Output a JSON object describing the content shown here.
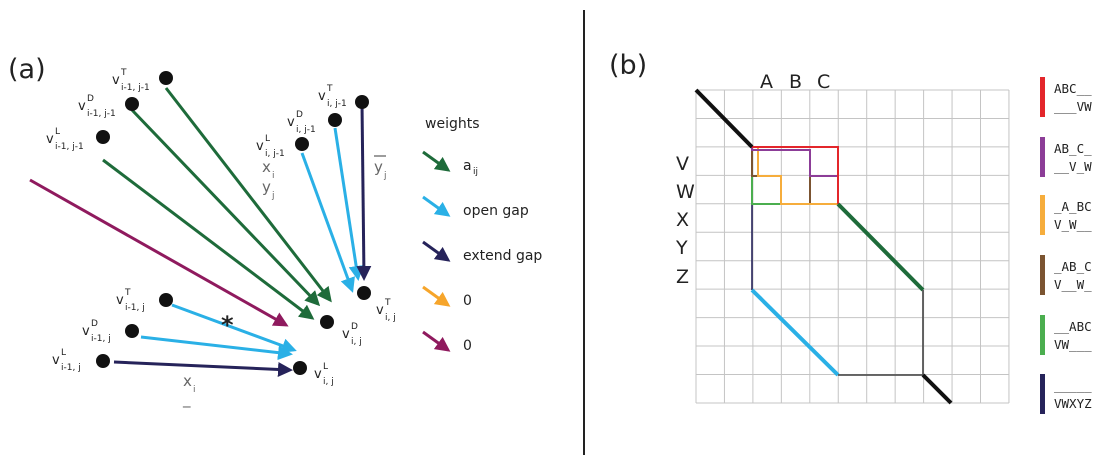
{
  "panel_a": {
    "label": "(a)",
    "nodes": {
      "t_prev": {
        "main": "v",
        "sup": "T",
        "sub": "i-1, j-1"
      },
      "d_prev": {
        "main": "v",
        "sup": "D",
        "sub": "i-1, j-1"
      },
      "l_prev": {
        "main": "v",
        "sup": "L",
        "sub": "i-1, j-1"
      },
      "t_up": {
        "main": "v",
        "sup": "T",
        "sub": "i, j-1"
      },
      "d_up": {
        "main": "v",
        "sup": "D",
        "sub": "i, j-1"
      },
      "l_up": {
        "main": "v",
        "sup": "L",
        "sub": "i, j-1"
      },
      "t_left": {
        "main": "v",
        "sup": "T",
        "sub": "i-1, j"
      },
      "d_left": {
        "main": "v",
        "sup": "D",
        "sub": "i-1, j"
      },
      "l_left": {
        "main": "v",
        "sup": "L",
        "sub": "i-1, j"
      },
      "t_cur": {
        "main": "v",
        "sup": "T",
        "sub": "i, j"
      },
      "d_cur": {
        "main": "v",
        "sup": "D",
        "sub": "i, j"
      },
      "l_cur": {
        "main": "v",
        "sup": "L",
        "sub": "i, j"
      }
    },
    "edge_labels": {
      "x_diag": "x",
      "x_diag_sub": "i",
      "y_diag": "y",
      "y_diag_sub": "j",
      "y_bar": "y",
      "y_bar_sub": "j",
      "x_bottom": "x",
      "x_bottom_sub": "i",
      "dash": "_",
      "star": "*"
    },
    "weights": {
      "title": "weights",
      "items": [
        {
          "label": "a",
          "sub": "ij",
          "color": "#1e6b3a"
        },
        {
          "label": "open gap",
          "color": "#2ab0e6"
        },
        {
          "label": "extend gap",
          "color": "#26235a"
        },
        {
          "label": "0",
          "color": "#f6a52b"
        },
        {
          "label": "0",
          "color": "#8f1a5e"
        }
      ]
    }
  },
  "panel_b": {
    "label": "(b)",
    "columns": [
      "A",
      "B",
      "C"
    ],
    "rows": [
      "V",
      "W",
      "X",
      "Y",
      "Z"
    ],
    "legend": [
      {
        "top": "ABC__",
        "bottom": "___VW",
        "color": "#e3262b"
      },
      {
        "top": "AB_C_",
        "bottom": "__V_W",
        "color": "#8c3d97"
      },
      {
        "top": "_A_BC",
        "bottom": "V_W__",
        "color": "#f6ad3c"
      },
      {
        "top": "_AB_C",
        "bottom": "V__W_",
        "color": "#7b5431"
      },
      {
        "top": "__ABC",
        "bottom": "VW___",
        "color": "#4bae4f"
      },
      {
        "top": "_____",
        "bottom": "VWXYZ",
        "color": "#26235a"
      }
    ]
  },
  "colors": {
    "green": "#1e6b3a",
    "cyan": "#2ab0e6",
    "navy": "#26235a",
    "orange": "#f6a52b",
    "purple": "#8f1a5e"
  }
}
